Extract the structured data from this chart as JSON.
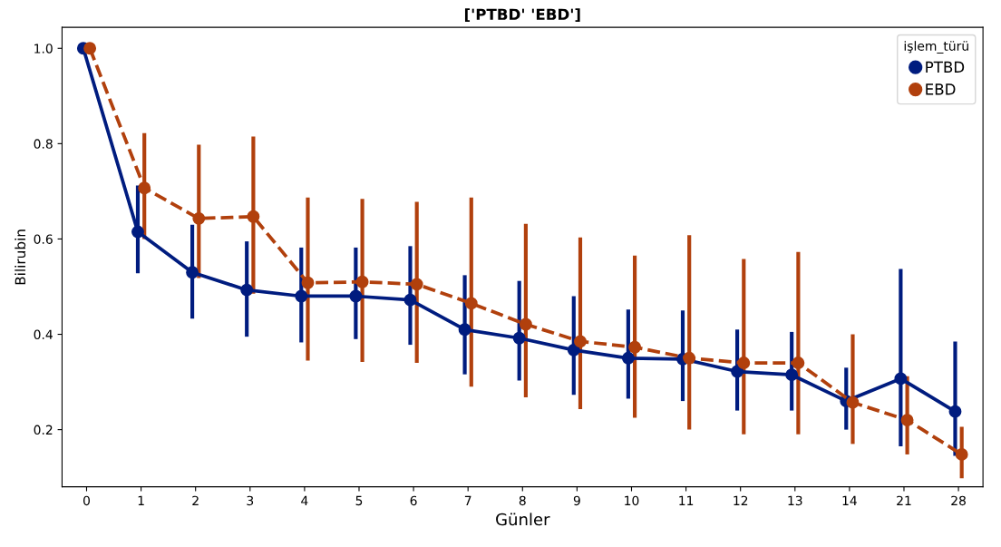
{
  "chart_data": {
    "type": "line",
    "title": "['PTBD' 'EBD']",
    "xlabel": "Günler",
    "ylabel": "Bilirubin",
    "legend_title": "işlem_türü",
    "categories": [
      "0",
      "1",
      "2",
      "3",
      "4",
      "5",
      "6",
      "7",
      "8",
      "9",
      "10",
      "11",
      "12",
      "13",
      "14",
      "21",
      "28"
    ],
    "series": [
      {
        "name": "PTBD",
        "color": "#001c7f",
        "line_style": "solid",
        "values": [
          1.0,
          0.615,
          0.53,
          0.493,
          0.48,
          0.48,
          0.472,
          0.41,
          0.392,
          0.367,
          0.35,
          0.348,
          0.322,
          0.315,
          0.26,
          0.307,
          0.238
        ],
        "errors": [
          null,
          [
            0.528,
            0.712
          ],
          [
            0.433,
            0.63
          ],
          [
            0.395,
            0.595
          ],
          [
            0.383,
            0.582
          ],
          [
            0.39,
            0.582
          ],
          [
            0.378,
            0.585
          ],
          [
            0.316,
            0.524
          ],
          [
            0.303,
            0.512
          ],
          [
            0.273,
            0.48
          ],
          [
            0.265,
            0.452
          ],
          [
            0.26,
            0.45
          ],
          [
            0.24,
            0.41
          ],
          [
            0.24,
            0.405
          ],
          [
            0.2,
            0.33
          ],
          [
            0.165,
            0.537
          ],
          [
            0.145,
            0.385
          ]
        ]
      },
      {
        "name": "EBD",
        "color": "#b1400d",
        "line_style": "dashed",
        "values": [
          1.0,
          0.707,
          0.643,
          0.647,
          0.508,
          0.51,
          0.505,
          0.465,
          0.421,
          0.385,
          0.373,
          0.35,
          0.34,
          0.34,
          0.257,
          0.22,
          0.148
        ],
        "errors": [
          null,
          [
            0.6,
            0.822
          ],
          [
            0.518,
            0.798
          ],
          [
            0.485,
            0.815
          ],
          [
            0.345,
            0.687
          ],
          [
            0.342,
            0.684
          ],
          [
            0.34,
            0.678
          ],
          [
            0.29,
            0.687
          ],
          [
            0.268,
            0.632
          ],
          [
            0.243,
            0.603
          ],
          [
            0.225,
            0.565
          ],
          [
            0.2,
            0.608
          ],
          [
            0.19,
            0.558
          ],
          [
            0.19,
            0.573
          ],
          [
            0.17,
            0.4
          ],
          [
            0.148,
            0.312
          ],
          [
            0.098,
            0.206
          ]
        ]
      }
    ],
    "ylim": [
      0.08,
      1.044
    ],
    "yticks": [
      {
        "value": 0.2,
        "label": "0.2"
      },
      {
        "value": 0.4,
        "label": "0.4"
      },
      {
        "value": 0.6,
        "label": "0.6"
      },
      {
        "value": 0.8,
        "label": "0.8"
      },
      {
        "value": 1.0,
        "label": "1.0"
      }
    ],
    "marker": "circle",
    "grid": false,
    "legend": "top right"
  }
}
